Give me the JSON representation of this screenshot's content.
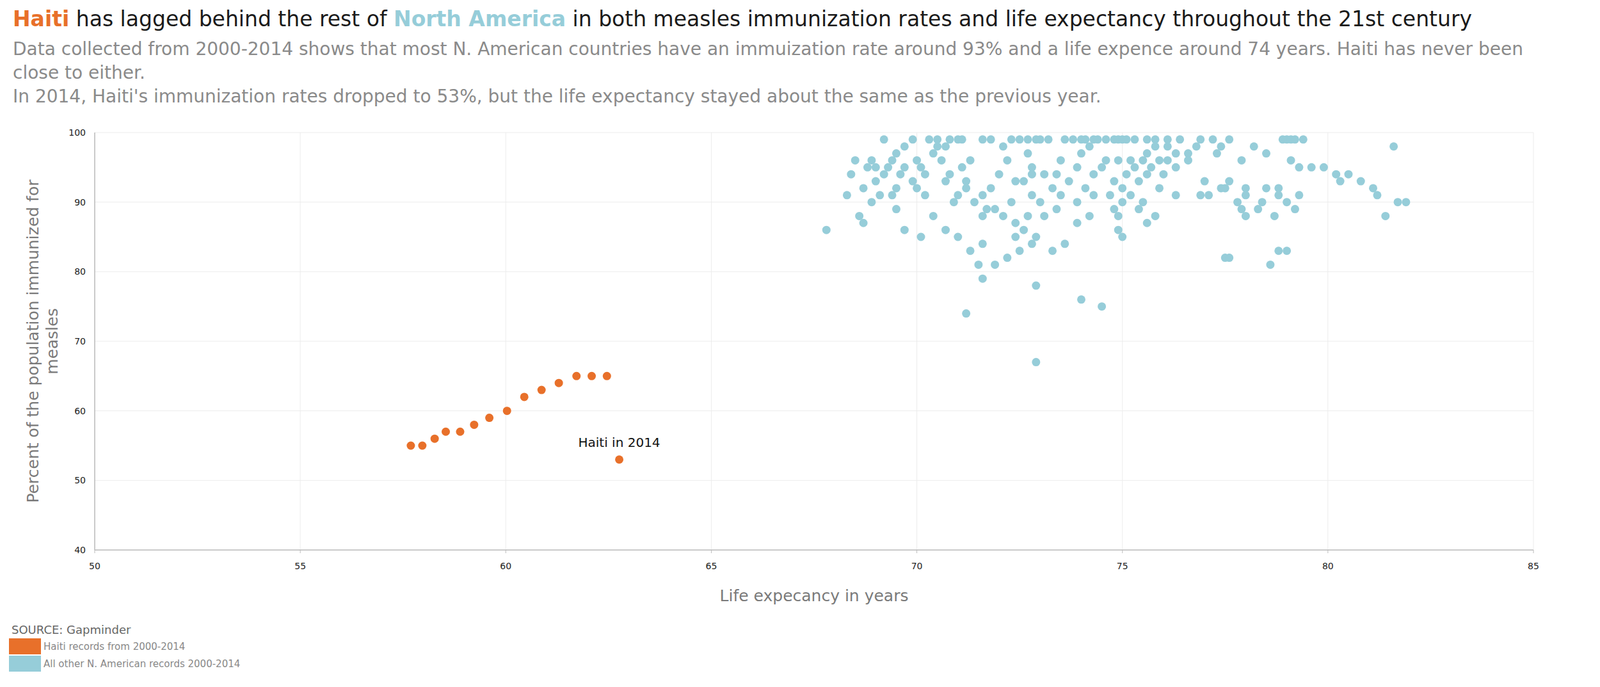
{
  "chart_data": {
    "type": "scatter",
    "title": [
      {
        "text": "Haiti",
        "color": "#e8702a"
      },
      {
        "text": " has lagged behind the rest of "
      },
      {
        "text": "North America",
        "color": "#96cdd9"
      },
      {
        "text": " in both measles immunization rates and life expectancy throughout the 21st century"
      }
    ],
    "subtitle": [
      "Data collected from 2000-2014 shows that most N. American countries have an immuization rate around 93% and a life expence around 74 years. Haiti has never been close to either.",
      "In 2014, Haiti's immunization rates dropped to 53%, but the life expectancy stayed about the same as the previous year."
    ],
    "x_label": "Life expecancy in years",
    "y_label": "Percent of the population immunized for measles",
    "source": "SOURCE: Gapminder",
    "annotations": [
      {
        "text": "Haiti in 2014",
        "x": 62.76,
        "y": 53
      }
    ],
    "xlim": [
      50,
      85
    ],
    "xticks": [
      50,
      55,
      60,
      65,
      70,
      75,
      80,
      85
    ],
    "ylim": [
      40,
      100
    ],
    "yticks": [
      40,
      50,
      60,
      70,
      80,
      90,
      100
    ],
    "grid": true,
    "legend": "bottom-left",
    "marker": "circle",
    "series": [
      {
        "name": "Haiti records from 2000-2014",
        "color": "#e8702a",
        "x": [
          57.69,
          57.97,
          58.27,
          58.54,
          58.89,
          59.23,
          59.6,
          60.03,
          60.45,
          60.87,
          61.29,
          61.72,
          62.09,
          62.46,
          62.76
        ],
        "values": [
          55,
          55,
          56,
          57,
          57,
          58,
          59,
          60,
          62,
          63,
          64,
          65,
          65,
          65,
          53
        ]
      },
      {
        "name": "All other N. American records 2000-2014",
        "color": "#96cdd9",
        "x": [
          69.2,
          69.9,
          70.3,
          70.5,
          70.8,
          71.0,
          71.1,
          71.6,
          71.8,
          72.3,
          72.5,
          72.7,
          72.9,
          73.0,
          73.2,
          73.6,
          73.8,
          74.0,
          74.1,
          74.3,
          74.4,
          74.6,
          74.8,
          74.9,
          75.0,
          75.1,
          75.3,
          75.6,
          75.8,
          76.1,
          76.4,
          76.9,
          77.2,
          77.6,
          78.9,
          79.0,
          79.1,
          79.2,
          79.4,
          69.7,
          70.5,
          70.7,
          72.1,
          74.2,
          75.8,
          76.1,
          76.8,
          77.4,
          78.2,
          81.6,
          69.5,
          70.4,
          72.7,
          74.0,
          75.6,
          76.3,
          76.6,
          77.3,
          78.5,
          68.5,
          68.9,
          69.4,
          70.0,
          70.6,
          71.3,
          72.2,
          73.5,
          74.6,
          74.9,
          75.2,
          75.5,
          75.9,
          76.1,
          76.6,
          77.9,
          79.1,
          68.8,
          69.0,
          69.3,
          69.7,
          70.1,
          71.1,
          72.8,
          73.9,
          74.5,
          75.3,
          75.7,
          76.3,
          79.3,
          79.6,
          79.9,
          68.4,
          69.2,
          69.6,
          70.2,
          70.8,
          72.0,
          72.8,
          73.1,
          73.4,
          74.3,
          75.1,
          75.6,
          76.0,
          80.2,
          80.5,
          69.0,
          69.9,
          70.7,
          71.2,
          72.4,
          72.6,
          73.7,
          74.8,
          75.4,
          77.0,
          77.6,
          80.3,
          80.8,
          68.7,
          69.5,
          70.0,
          71.2,
          71.8,
          73.3,
          74.1,
          75.0,
          75.9,
          77.4,
          77.5,
          78.0,
          78.5,
          78.8,
          81.1,
          68.3,
          69.1,
          69.4,
          70.2,
          71.0,
          71.6,
          72.8,
          73.5,
          74.3,
          74.7,
          75.2,
          76.3,
          76.9,
          77.1,
          78.0,
          78.8,
          79.3,
          81.2,
          68.9,
          70.9,
          71.4,
          72.3,
          73.0,
          73.9,
          75.0,
          75.5,
          77.8,
          78.4,
          79.0,
          81.7,
          81.9,
          69.5,
          71.7,
          71.9,
          73.4,
          74.8,
          75.4,
          77.9,
          78.3,
          79.2,
          68.6,
          70.4,
          71.6,
          72.1,
          72.7,
          73.1,
          74.2,
          74.9,
          75.8,
          78.0,
          78.7,
          81.4,
          68.7,
          72.4,
          73.9,
          75.6,
          67.8,
          69.7,
          70.7,
          72.6,
          74.9,
          70.1,
          71.0,
          72.4,
          72.9,
          75.0,
          71.6,
          72.8,
          73.6,
          71.3,
          72.5,
          73.3,
          78.8,
          79.0,
          72.2,
          77.5,
          77.6,
          71.5,
          71.9,
          78.6,
          71.6,
          72.9,
          74.0,
          74.5,
          71.2,
          72.9
        ],
        "values": [
          99,
          99,
          99,
          99,
          99,
          99,
          99,
          99,
          99,
          99,
          99,
          99,
          99,
          99,
          99,
          99,
          99,
          99,
          99,
          99,
          99,
          99,
          99,
          99,
          99,
          99,
          99,
          99,
          99,
          99,
          99,
          99,
          99,
          99,
          99,
          99,
          99,
          99,
          99,
          98,
          98,
          98,
          98,
          98,
          98,
          98,
          98,
          98,
          98,
          98,
          97,
          97,
          97,
          97,
          97,
          97,
          97,
          97,
          97,
          96,
          96,
          96,
          96,
          96,
          96,
          96,
          96,
          96,
          96,
          96,
          96,
          96,
          96,
          96,
          96,
          96,
          95,
          95,
          95,
          95,
          95,
          95,
          95,
          95,
          95,
          95,
          95,
          95,
          95,
          95,
          95,
          94,
          94,
          94,
          94,
          94,
          94,
          94,
          94,
          94,
          94,
          94,
          94,
          94,
          94,
          94,
          93,
          93,
          93,
          93,
          93,
          93,
          93,
          93,
          93,
          93,
          93,
          93,
          93,
          92,
          92,
          92,
          92,
          92,
          92,
          92,
          92,
          92,
          92,
          92,
          92,
          92,
          92,
          92,
          91,
          91,
          91,
          91,
          91,
          91,
          91,
          91,
          91,
          91,
          91,
          91,
          91,
          91,
          91,
          91,
          91,
          91,
          90,
          90,
          90,
          90,
          90,
          90,
          90,
          90,
          90,
          90,
          90,
          90,
          90,
          89,
          89,
          89,
          89,
          89,
          89,
          89,
          89,
          89,
          88,
          88,
          88,
          88,
          88,
          88,
          88,
          88,
          88,
          88,
          88,
          88,
          87,
          87,
          87,
          87,
          86,
          86,
          86,
          86,
          86,
          85,
          85,
          85,
          85,
          85,
          84,
          84,
          84,
          83,
          83,
          83,
          83,
          83,
          82,
          82,
          82,
          81,
          81,
          81,
          79,
          78,
          76,
          75,
          74,
          67
        ]
      }
    ]
  }
}
